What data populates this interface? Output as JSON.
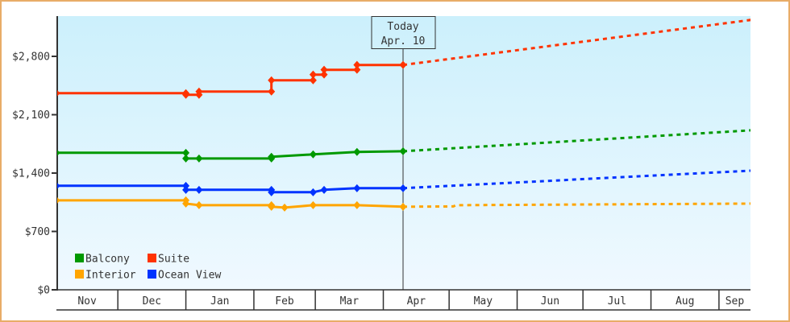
{
  "chart_data": {
    "type": "line",
    "title": "",
    "xlabel": "",
    "ylabel": "",
    "ylim": [
      0,
      2800
    ],
    "grid": false,
    "legend_position": "bottom-left inside plot",
    "x_range": [
      "Nov 3",
      "Sep 16"
    ],
    "y_ticks": [
      {
        "value": 2800,
        "label": "$2,800"
      },
      {
        "value": 2100,
        "label": "$2,100"
      },
      {
        "value": 1400,
        "label": "$1,400"
      },
      {
        "value": 700,
        "label": "$700"
      },
      {
        "value": 0,
        "label": "$0"
      }
    ],
    "categories": [
      "Nov",
      "Dec",
      "Jan",
      "Feb",
      "Mar",
      "Apr",
      "May",
      "Jun",
      "Jul",
      "Aug",
      "Sep"
    ],
    "today_marker": {
      "line1": "Today",
      "line2": "Apr. 10",
      "date": "Apr 10"
    },
    "legend": [
      {
        "name": "Balcony",
        "color": "#009900"
      },
      {
        "name": "Suite",
        "color": "#ff3300"
      },
      {
        "name": "Interior",
        "color": "#ffa500"
      },
      {
        "name": "Ocean View",
        "color": "#0033ff"
      }
    ],
    "series": [
      {
        "name": "Interior",
        "color": "#ffa500",
        "points": [
          [
            "Nov 3",
            1073
          ],
          [
            "Jan 1",
            1073
          ],
          [
            "Jan 1",
            1034
          ],
          [
            "Jan 7",
            1015
          ],
          [
            "Feb 9",
            1015
          ],
          [
            "Feb 9",
            996
          ],
          [
            "Feb 15",
            986
          ],
          [
            "Feb 28",
            1015
          ],
          [
            "Mar 20",
            1015
          ],
          [
            "Apr 10",
            996
          ]
        ],
        "projection": [
          [
            "Apr 10",
            996
          ],
          [
            "May 3",
            1000
          ],
          [
            "May 4",
            1015
          ],
          [
            "Sep 16",
            1034
          ]
        ]
      },
      {
        "name": "Ocean View",
        "color": "#0033ff",
        "points": [
          [
            "Nov 3",
            1247
          ],
          [
            "Jan 1",
            1247
          ],
          [
            "Jan 1",
            1199
          ],
          [
            "Jan 7",
            1199
          ],
          [
            "Feb 9",
            1199
          ],
          [
            "Feb 9",
            1170
          ],
          [
            "Feb 28",
            1170
          ],
          [
            "Mar 5",
            1199
          ],
          [
            "Mar 20",
            1218
          ],
          [
            "Apr 10",
            1218
          ]
        ],
        "projection": [
          [
            "Apr 10",
            1218
          ],
          [
            "Sep 16",
            1430
          ]
        ]
      },
      {
        "name": "Balcony",
        "color": "#009900",
        "points": [
          [
            "Nov 3",
            1643
          ],
          [
            "Jan 1",
            1643
          ],
          [
            "Jan 1",
            1575
          ],
          [
            "Jan 7",
            1575
          ],
          [
            "Feb 9",
            1575
          ],
          [
            "Feb 9",
            1595
          ],
          [
            "Feb 28",
            1624
          ],
          [
            "Mar 20",
            1653
          ],
          [
            "Apr 10",
            1662
          ]
        ],
        "projection": [
          [
            "Apr 10",
            1662
          ],
          [
            "Sep 16",
            1914
          ]
        ]
      },
      {
        "name": "Suite",
        "color": "#ff3300",
        "points": [
          [
            "Nov 3",
            2358
          ],
          [
            "Jan 1",
            2358
          ],
          [
            "Jan 1",
            2339
          ],
          [
            "Jan 7",
            2339
          ],
          [
            "Jan 7",
            2378
          ],
          [
            "Feb 9",
            2378
          ],
          [
            "Feb 9",
            2513
          ],
          [
            "Feb 28",
            2513
          ],
          [
            "Feb 28",
            2581
          ],
          [
            "Mar 5",
            2581
          ],
          [
            "Mar 5",
            2639
          ],
          [
            "Mar 20",
            2639
          ],
          [
            "Mar 20",
            2697
          ],
          [
            "Apr 10",
            2697
          ]
        ],
        "projection": [
          [
            "Apr 10",
            2697
          ],
          [
            "Sep 16",
            3238
          ]
        ]
      }
    ]
  },
  "colors": {
    "frame_border": "#e8ac68",
    "plot_top": "#ccf0fc",
    "plot_bottom": "#f0f9ff",
    "axis": "#333333"
  }
}
